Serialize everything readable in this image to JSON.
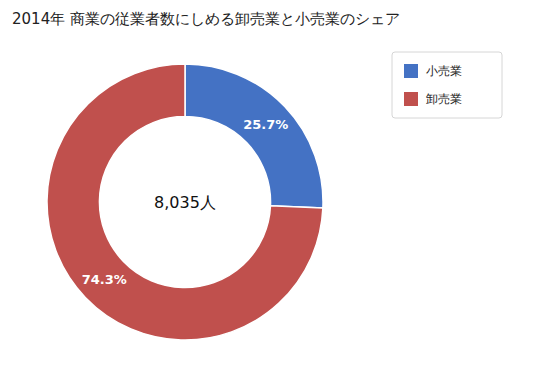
{
  "chart_data": {
    "type": "pie",
    "title": "2014年 商業の従業者数にしめる卸売業と小売業のシェア",
    "categories": [
      "小売業",
      "卸売業"
    ],
    "values": [
      25.7,
      74.3
    ],
    "value_labels": [
      "25.7%",
      "74.3%"
    ],
    "colors": [
      "#4472C4",
      "#C0504D"
    ],
    "annotations": [
      "8,035人"
    ],
    "data_labels": true,
    "legend": "upper right"
  }
}
